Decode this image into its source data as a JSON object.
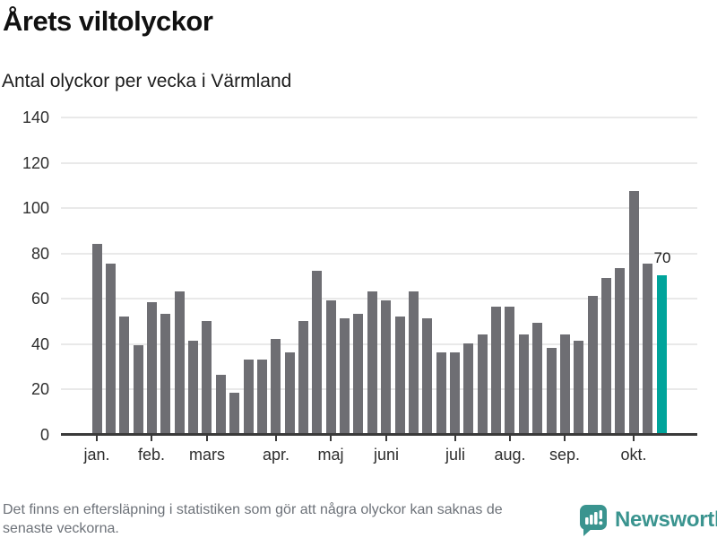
{
  "header": {
    "title": "Årets viltolyckor",
    "subtitle": "Antal olyckor per vecka i Värmland"
  },
  "chart_data": {
    "type": "bar",
    "title": "Årets viltolyckor",
    "subtitle": "Antal olyckor per vecka i Värmland",
    "unit": "olyckor per vecka",
    "values": [
      84,
      75,
      52,
      39,
      58,
      53,
      63,
      41,
      50,
      26,
      18,
      33,
      33,
      42,
      36,
      50,
      72,
      59,
      51,
      53,
      63,
      59,
      52,
      63,
      51,
      36,
      36,
      40,
      44,
      56,
      56,
      44,
      49,
      38,
      44,
      41,
      61,
      69,
      73,
      107,
      75,
      70
    ],
    "highlight_index": 41,
    "highlight_value_label": "70",
    "y_ticks": [
      0,
      20,
      40,
      60,
      80,
      100,
      120,
      140
    ],
    "ylim": [
      0,
      140
    ],
    "grid": true,
    "month_ticks": [
      {
        "index": 0,
        "label": "jan."
      },
      {
        "index": 4,
        "label": "feb."
      },
      {
        "index": 8,
        "label": "mars"
      },
      {
        "index": 13,
        "label": "apr."
      },
      {
        "index": 17,
        "label": "maj"
      },
      {
        "index": 21,
        "label": "juni"
      },
      {
        "index": 26,
        "label": "juli"
      },
      {
        "index": 30,
        "label": "aug."
      },
      {
        "index": 34,
        "label": "sep."
      },
      {
        "index": 39,
        "label": "okt."
      }
    ],
    "colors": {
      "bar": "#6e6e73",
      "highlight": "#00a49b",
      "gridline": "#e9e9e9",
      "axis": "#3a3a3a"
    }
  },
  "footer": {
    "note_line1": "Det finns en eftersläpning i statistiken som gör att några olyckor kan saknas de",
    "note_line2": "senaste veckorna."
  },
  "brand": {
    "name": "Newsworthy",
    "icon": "newsworthy-chart-bubble-icon",
    "color": "#3a948f"
  }
}
